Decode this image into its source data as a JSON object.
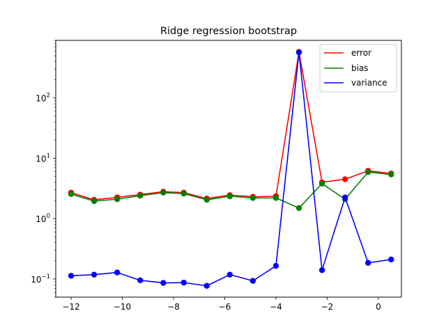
{
  "chart_data": {
    "type": "line",
    "title": "Ridge regression bootstrap",
    "xlabel": "",
    "ylabel": "",
    "yscale": "log",
    "xlim": [
      -12.6,
      0.9
    ],
    "ylim": [
      0.05,
      900
    ],
    "xticks": [
      -12,
      -10,
      -8,
      -6,
      -4,
      -2,
      0
    ],
    "xtick_labels": [
      "−12",
      "−10",
      "−8",
      "−6",
      "−4",
      "−2",
      "0"
    ],
    "yticks": [
      0.1,
      1,
      10,
      100
    ],
    "ytick_labels": [
      "10",
      "10",
      "10",
      "10"
    ],
    "ytick_exponents": [
      "−1",
      "0",
      "1",
      "2"
    ],
    "x": [
      -12.0,
      -11.1,
      -10.2,
      -9.3,
      -8.4,
      -7.6,
      -6.7,
      -5.8,
      -4.9,
      -4.0,
      -3.1,
      -2.2,
      -1.3,
      -0.4,
      0.5
    ],
    "series": [
      {
        "name": "error",
        "color": "#ff0000",
        "values": [
          2.7,
          2.05,
          2.25,
          2.5,
          2.8,
          2.7,
          2.15,
          2.45,
          2.3,
          2.35,
          580,
          4.0,
          4.5,
          6.2,
          5.6
        ]
      },
      {
        "name": "bias",
        "color": "#008000",
        "values": [
          2.55,
          1.95,
          2.1,
          2.4,
          2.7,
          2.6,
          2.05,
          2.35,
          2.2,
          2.2,
          1.5,
          3.8,
          2.1,
          5.9,
          5.4
        ]
      },
      {
        "name": "variance",
        "color": "#0000ff",
        "values": [
          0.113,
          0.118,
          0.128,
          0.095,
          0.086,
          0.087,
          0.077,
          0.118,
          0.093,
          0.165,
          570,
          0.14,
          2.25,
          0.185,
          0.21
        ]
      }
    ],
    "grid": false,
    "legend_position": "upper-right"
  }
}
